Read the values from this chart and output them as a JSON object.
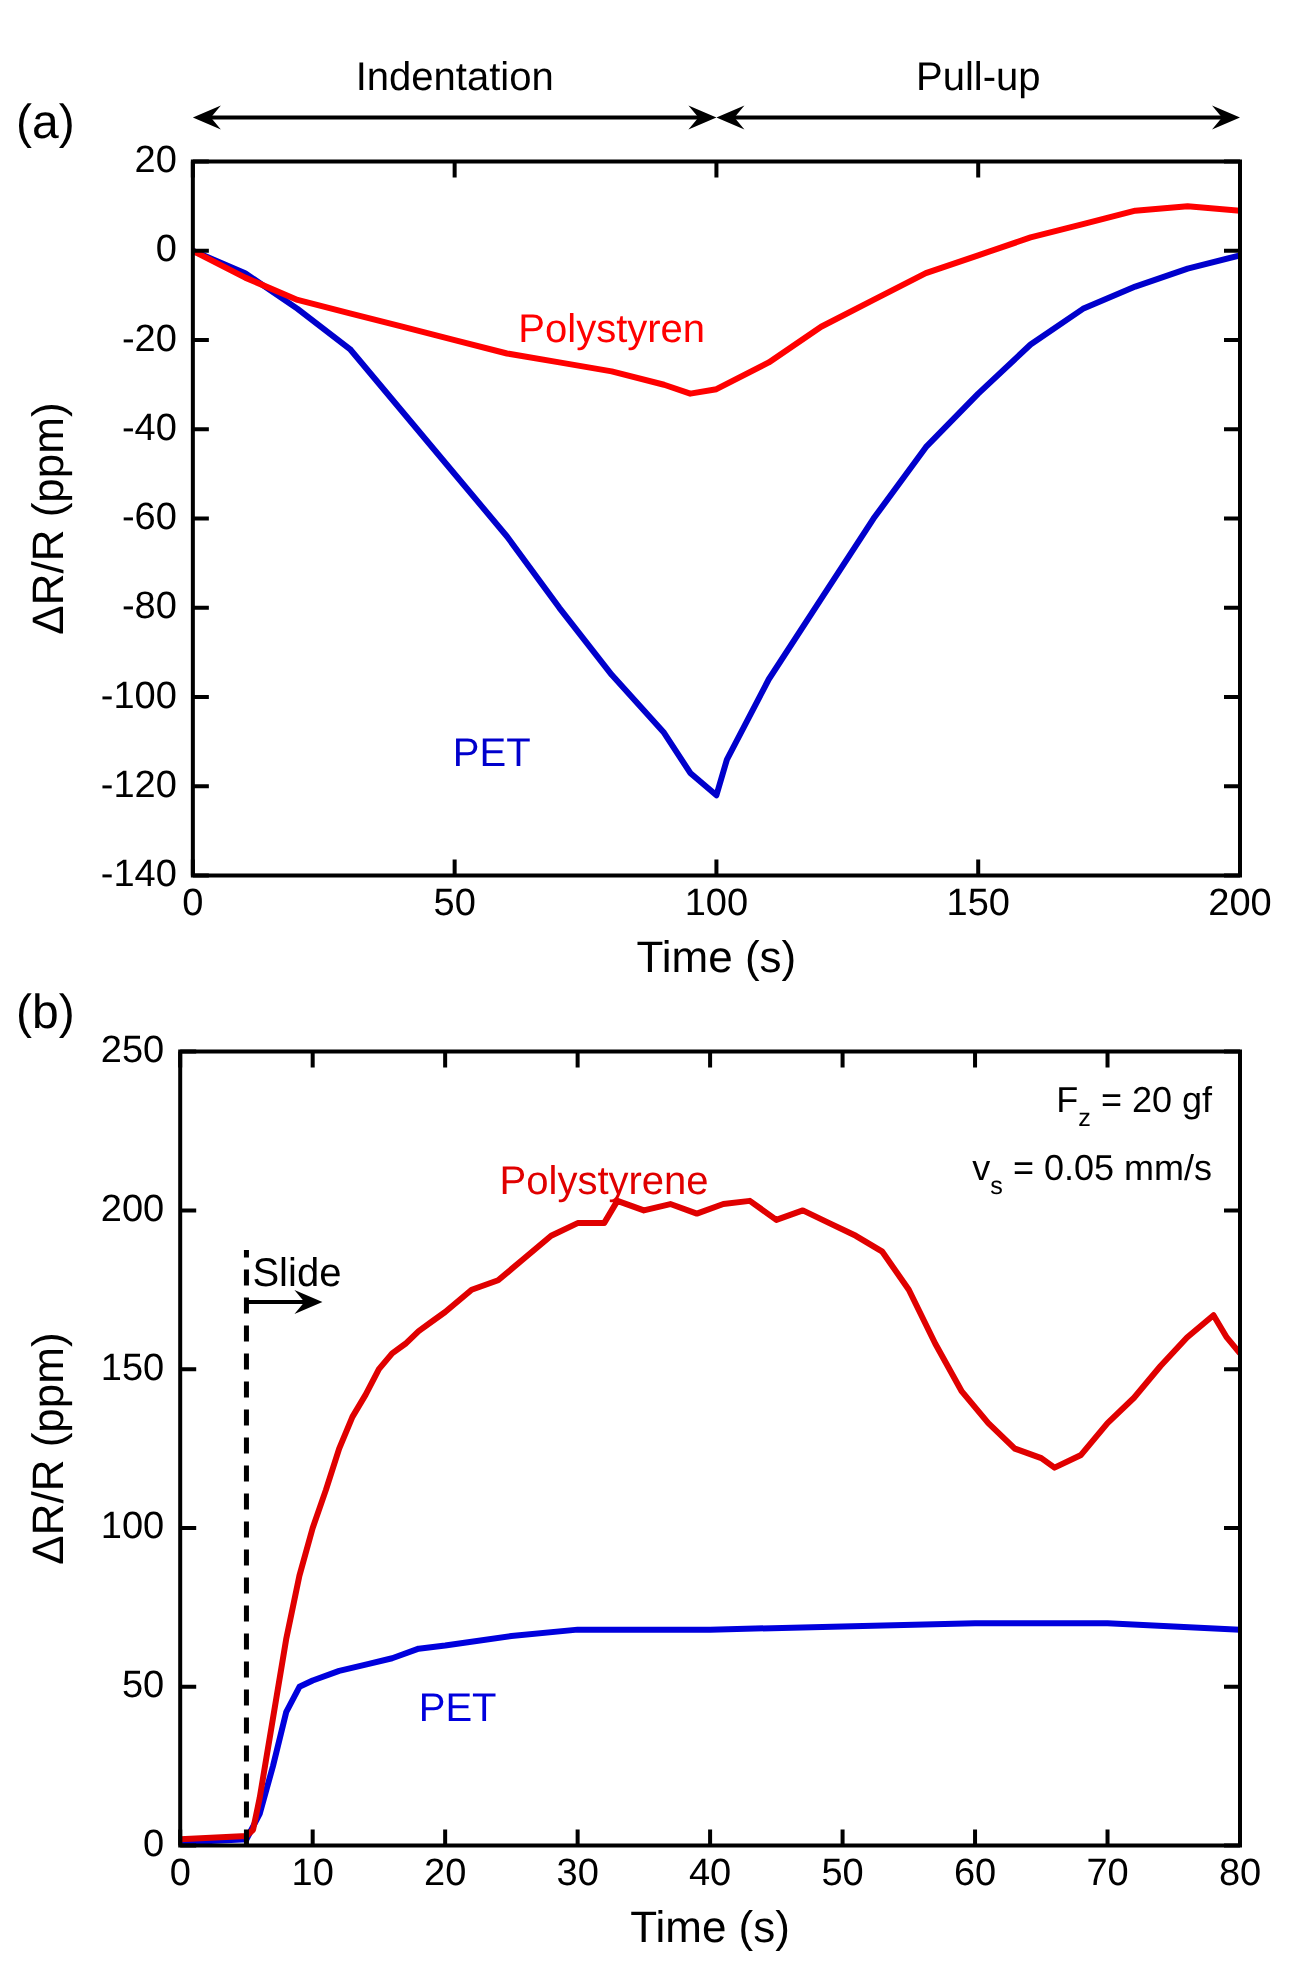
{
  "chart_data": [
    {
      "type": "line",
      "title": "(a)",
      "xlabel": "Time (s)",
      "ylabel": "ΔR/R (ppm)",
      "xlim": [
        0,
        200
      ],
      "xticks": [
        0,
        50,
        100,
        150,
        200
      ],
      "ylim": [
        -140,
        20
      ],
      "yticks": [
        -140,
        -120,
        -100,
        -80,
        -60,
        -40,
        -20,
        0,
        20
      ],
      "marker": "none",
      "line_style": "solid",
      "annotations": [
        "Indentation",
        "Pull-up"
      ],
      "series": [
        {
          "name": "Polystyren",
          "color": "#ff0000",
          "x": [
            0,
            10,
            20,
            30,
            40,
            50,
            60,
            70,
            80,
            90,
            95,
            100,
            110,
            120,
            130,
            140,
            150,
            160,
            170,
            180,
            190,
            200
          ],
          "values": [
            0,
            -6,
            -11,
            -14,
            -17,
            -20,
            -23,
            -25,
            -27,
            -30,
            -32,
            -31,
            -25,
            -17,
            -11,
            -5,
            -1,
            3,
            6,
            9,
            10,
            9
          ]
        },
        {
          "name": "PET",
          "color": "#0000cc",
          "x": [
            0,
            10,
            20,
            30,
            40,
            50,
            60,
            70,
            80,
            90,
            95,
            100,
            102,
            110,
            120,
            130,
            140,
            150,
            160,
            170,
            180,
            190,
            200
          ],
          "values": [
            0,
            -5,
            -13,
            -22,
            -36,
            -50,
            -64,
            -80,
            -95,
            -108,
            -117,
            -122,
            -114,
            -96,
            -78,
            -60,
            -44,
            -32,
            -21,
            -13,
            -8,
            -4,
            -1
          ]
        }
      ]
    },
    {
      "type": "line",
      "title": "(b)",
      "xlabel": "Time (s)",
      "ylabel": "ΔR/R (ppm)",
      "xlim": [
        0,
        80
      ],
      "xticks": [
        0,
        10,
        20,
        30,
        40,
        50,
        60,
        70,
        80
      ],
      "ylim": [
        0,
        250
      ],
      "yticks": [
        0,
        50,
        100,
        150,
        200,
        250
      ],
      "marker": "none",
      "line_style": "solid",
      "annotations": [
        "F$_{z}$ = 20 gf",
        "v$_{s}$ = 0.05 mm/s"
      ],
      "ref_lines": [
        {
          "axis": "x",
          "value": 5,
          "label": "Slide",
          "line_style": "dashed",
          "color": "#000000"
        }
      ],
      "series": [
        {
          "name": "Polystyrene",
          "color": "#e00000",
          "x": [
            0,
            5,
            5.5,
            6,
            7,
            8,
            9,
            10,
            11,
            12,
            13,
            14,
            15,
            16,
            17,
            18,
            19,
            20,
            22,
            24,
            26,
            28,
            30,
            32,
            33,
            35,
            37,
            39,
            41,
            43,
            45,
            47,
            49,
            51,
            53,
            55,
            57,
            59,
            61,
            63,
            65,
            66,
            68,
            70,
            72,
            74,
            76,
            78,
            79,
            80
          ],
          "values": [
            2,
            3,
            5,
            15,
            40,
            65,
            85,
            100,
            112,
            125,
            135,
            142,
            150,
            155,
            158,
            162,
            165,
            168,
            175,
            178,
            185,
            192,
            196,
            196,
            203,
            200,
            202,
            199,
            202,
            203,
            197,
            200,
            196,
            192,
            187,
            175,
            158,
            143,
            133,
            125,
            122,
            119,
            123,
            133,
            141,
            151,
            160,
            167,
            160,
            155
          ]
        },
        {
          "name": "PET",
          "color": "#0000dd",
          "x": [
            0,
            5,
            6,
            7,
            8,
            9,
            10,
            12,
            14,
            16,
            18,
            20,
            25,
            30,
            40,
            50,
            60,
            70,
            80
          ],
          "values": [
            1,
            2,
            10,
            25,
            42,
            50,
            52,
            55,
            57,
            59,
            62,
            63,
            66,
            68,
            68,
            69,
            70,
            70,
            68
          ]
        }
      ]
    }
  ]
}
